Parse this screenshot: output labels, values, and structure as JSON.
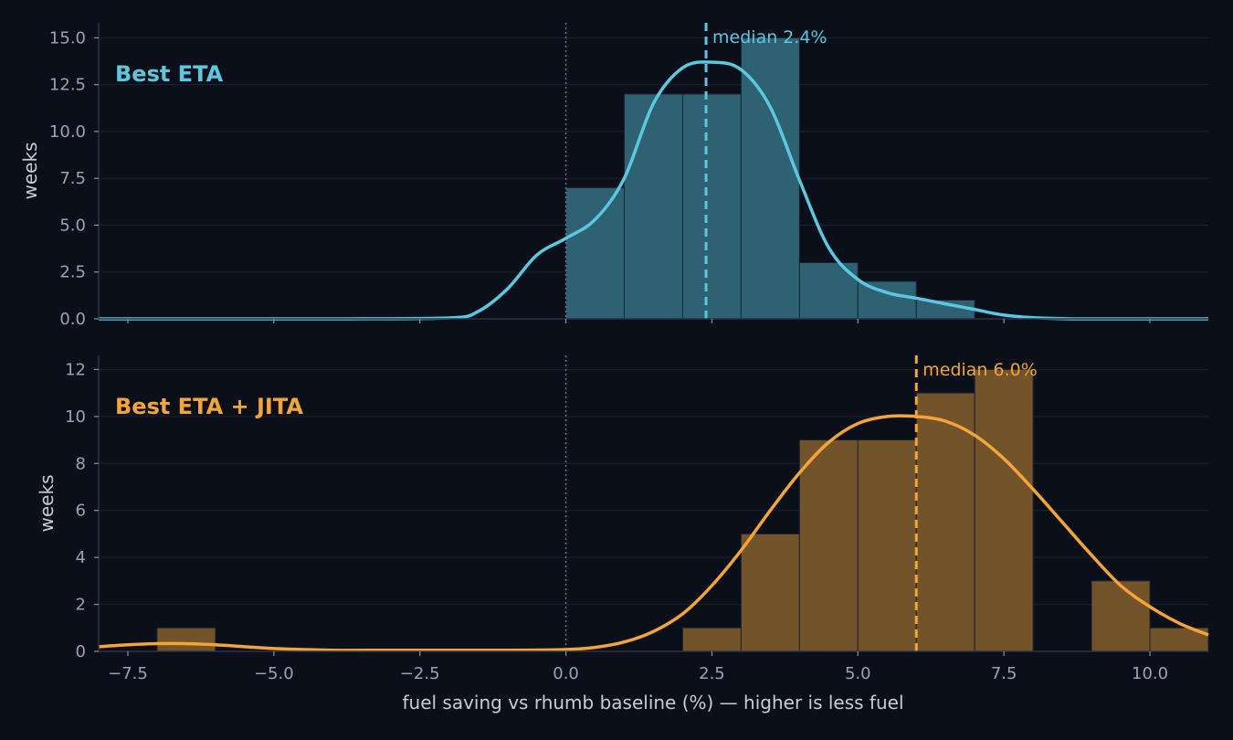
{
  "chart_data": [
    {
      "type": "bar",
      "panel_label": "Best ETA",
      "color": "#5bc8e0",
      "bar_fill": "#2e6273",
      "ylabel": "weeks",
      "xlim": [
        -8.0,
        11.0
      ],
      "ylim": [
        0,
        15.8
      ],
      "yticks": [
        "0.0",
        "2.5",
        "5.0",
        "7.5",
        "10.0",
        "12.5",
        "15.0"
      ],
      "ytick_values": [
        0,
        2.5,
        5.0,
        7.5,
        10.0,
        12.5,
        15.0
      ],
      "bin_edges": [
        0,
        1,
        2,
        3,
        4,
        5,
        6,
        7
      ],
      "counts": [
        7,
        12,
        12,
        15,
        3,
        2,
        1
      ],
      "kde": {
        "x": [
          -8,
          -4.0,
          -2.0,
          -1.5,
          -1.0,
          -0.5,
          0.0,
          0.5,
          1.0,
          1.5,
          2.0,
          2.5,
          3.0,
          3.5,
          4.0,
          4.5,
          5.0,
          5.5,
          6.0,
          6.5,
          7.0,
          7.5,
          8.0,
          8.5,
          9.0,
          11.0
        ],
        "y": [
          0,
          0,
          0.05,
          0.4,
          1.6,
          3.4,
          4.3,
          5.3,
          7.5,
          11.5,
          13.4,
          13.7,
          13.3,
          11.3,
          7.4,
          3.8,
          2.1,
          1.4,
          1.1,
          0.8,
          0.5,
          0.2,
          0.06,
          0.01,
          0,
          0
        ]
      },
      "median": 2.4,
      "median_label": "median 2.4%",
      "grid": true,
      "show_xtick_labels": false
    },
    {
      "type": "bar",
      "panel_label": "Best ETA + JITA",
      "color": "#f3a53a",
      "bar_fill": "#73532a",
      "ylabel": "weeks",
      "xlim": [
        -8.0,
        11.0
      ],
      "ylim": [
        0,
        12.6
      ],
      "yticks": [
        "0",
        "2",
        "4",
        "6",
        "8",
        "10",
        "12"
      ],
      "ytick_values": [
        0,
        2,
        4,
        6,
        8,
        10,
        12
      ],
      "bin_edges": [
        -7,
        -6,
        -5,
        -4,
        -3,
        -2,
        -1,
        0,
        1,
        2,
        3,
        4,
        5,
        6,
        7,
        8,
        9,
        10,
        11
      ],
      "counts": [
        1,
        0,
        0,
        0,
        0,
        0,
        0,
        0,
        0,
        1,
        5,
        9,
        9,
        11,
        12,
        0,
        3,
        1
      ],
      "kde": {
        "x": [
          -8,
          -7.5,
          -7.0,
          -6.5,
          -6.0,
          -5.5,
          -5.0,
          -4.0,
          -3.0,
          -2.0,
          -1.0,
          0.0,
          0.5,
          1.0,
          1.5,
          2.0,
          2.5,
          3.0,
          3.5,
          4.0,
          4.5,
          5.0,
          5.5,
          6.0,
          6.5,
          7.0,
          7.5,
          8.0,
          8.5,
          9.0,
          9.5,
          10.0,
          10.5,
          11.0
        ],
        "y": [
          0.2,
          0.28,
          0.33,
          0.33,
          0.28,
          0.2,
          0.12,
          0.05,
          0.05,
          0.05,
          0.05,
          0.08,
          0.17,
          0.4,
          0.85,
          1.6,
          2.8,
          4.3,
          6.0,
          7.6,
          8.9,
          9.7,
          10.0,
          10.0,
          9.8,
          9.2,
          8.2,
          6.9,
          5.5,
          4.1,
          2.8,
          1.9,
          1.2,
          0.7
        ]
      },
      "median": 6.0,
      "median_label": "median 6.0%",
      "grid": true,
      "show_xtick_labels": true
    }
  ],
  "xticks": [
    "−7.5",
    "−5.0",
    "−2.5",
    "0.0",
    "2.5",
    "5.0",
    "7.5",
    "10.0"
  ],
  "xtick_values": [
    -7.5,
    -5.0,
    -2.5,
    0.0,
    2.5,
    5.0,
    7.5,
    10.0
  ],
  "xlabel": "fuel saving vs rhumb baseline (%)   —   higher is less fuel",
  "colors": {
    "background": "#0b0f19",
    "grid": "#1a2130",
    "axis": "#2c3444",
    "zero_line": "#6b7383"
  }
}
